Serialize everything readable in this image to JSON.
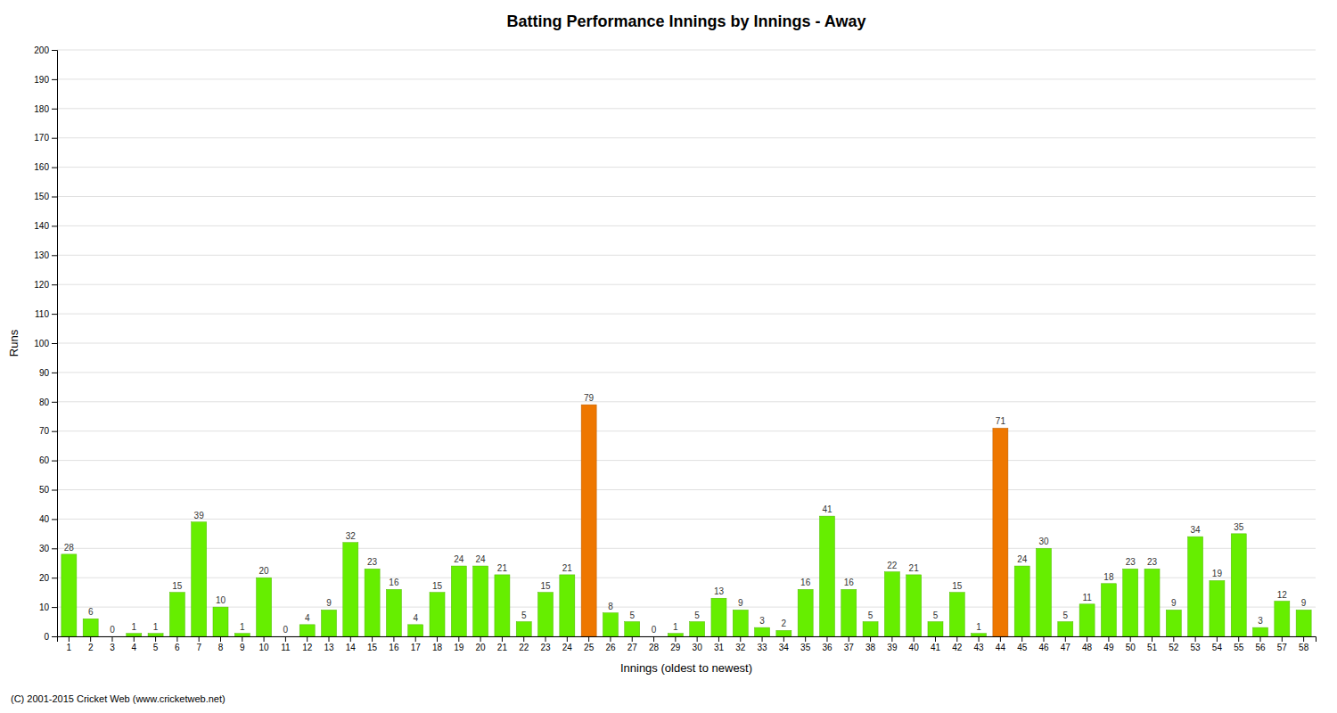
{
  "chart_data": {
    "type": "bar",
    "title": "Batting Performance Innings by Innings - Away",
    "x_label": "Innings (oldest to newest)",
    "y_label": "Runs",
    "footnote": "(C) 2001-2015 Cricket Web (www.cricketweb.net)",
    "categories": [
      "1",
      "2",
      "3",
      "4",
      "5",
      "6",
      "7",
      "8",
      "9",
      "10",
      "11",
      "12",
      "13",
      "14",
      "15",
      "16",
      "17",
      "18",
      "19",
      "20",
      "21",
      "22",
      "23",
      "24",
      "25",
      "26",
      "27",
      "28",
      "29",
      "30",
      "31",
      "32",
      "33",
      "34",
      "35",
      "36",
      "37",
      "38",
      "39",
      "40",
      "41",
      "42",
      "43",
      "44",
      "45",
      "46",
      "47",
      "48",
      "49",
      "50",
      "51",
      "52",
      "53",
      "54",
      "55",
      "56",
      "57",
      "58"
    ],
    "values": [
      28,
      6,
      0,
      1,
      1,
      15,
      39,
      10,
      1,
      20,
      0,
      4,
      9,
      32,
      23,
      16,
      4,
      15,
      24,
      24,
      21,
      5,
      15,
      21,
      79,
      8,
      5,
      0,
      1,
      5,
      13,
      9,
      3,
      2,
      16,
      41,
      16,
      5,
      22,
      21,
      5,
      15,
      1,
      71,
      24,
      30,
      5,
      11,
      18,
      23,
      23,
      9,
      34,
      19,
      35,
      3,
      12,
      9
    ],
    "colors": [
      "#66ee00",
      "#66ee00",
      "#66ee00",
      "#66ee00",
      "#66ee00",
      "#66ee00",
      "#66ee00",
      "#66ee00",
      "#66ee00",
      "#66ee00",
      "#66ee00",
      "#66ee00",
      "#66ee00",
      "#66ee00",
      "#66ee00",
      "#66ee00",
      "#66ee00",
      "#66ee00",
      "#66ee00",
      "#66ee00",
      "#66ee00",
      "#66ee00",
      "#66ee00",
      "#66ee00",
      "#ee7700",
      "#66ee00",
      "#66ee00",
      "#66ee00",
      "#66ee00",
      "#66ee00",
      "#66ee00",
      "#66ee00",
      "#66ee00",
      "#66ee00",
      "#66ee00",
      "#66ee00",
      "#66ee00",
      "#66ee00",
      "#66ee00",
      "#66ee00",
      "#66ee00",
      "#66ee00",
      "#66ee00",
      "#ee7700",
      "#66ee00",
      "#66ee00",
      "#66ee00",
      "#66ee00",
      "#66ee00",
      "#66ee00",
      "#66ee00",
      "#66ee00",
      "#66ee00",
      "#66ee00",
      "#66ee00",
      "#66ee00",
      "#66ee00",
      "#66ee00"
    ],
    "ylim": [
      0,
      200
    ],
    "yticks": [
      0,
      10,
      20,
      30,
      40,
      50,
      60,
      70,
      80,
      90,
      100,
      110,
      120,
      130,
      140,
      150,
      160,
      170,
      180,
      190,
      200
    ],
    "grid": true,
    "data_labels": true
  }
}
